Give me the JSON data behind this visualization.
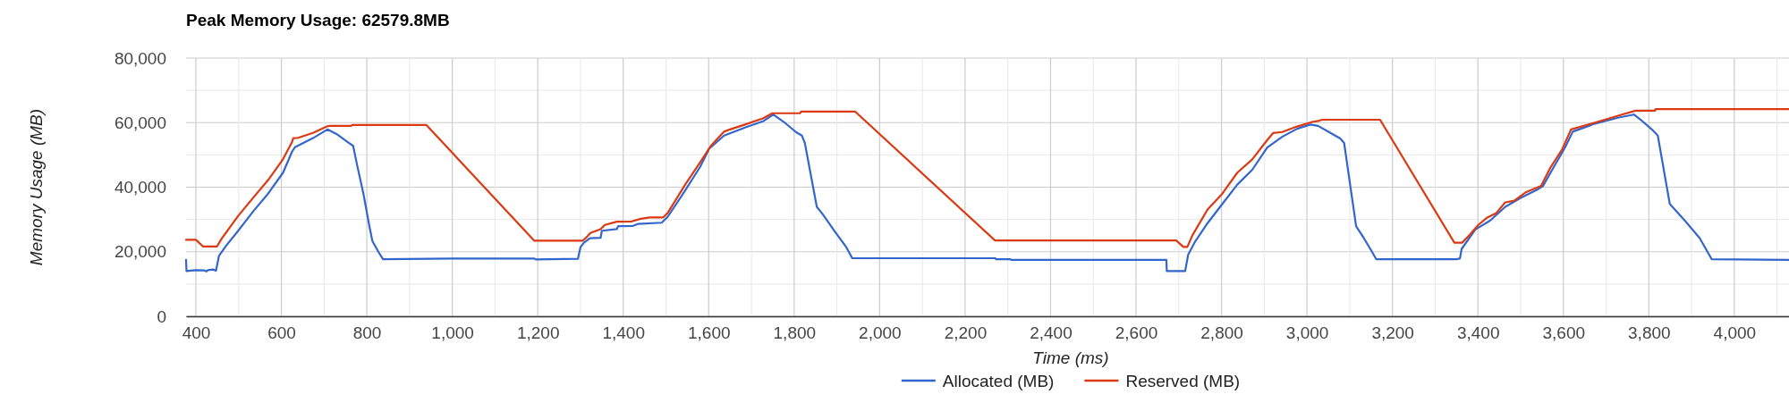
{
  "chart_data": {
    "type": "line",
    "title": "Peak Memory Usage: 62579.8MB",
    "xlabel": "Time (ms)",
    "ylabel": "Memory Usage (MB)",
    "xlim": [
      377,
      4128
    ],
    "xticks": [
      400,
      {
        "value": 500,
        "label": null
      },
      600,
      {
        "value": 700,
        "label": null
      },
      800,
      {
        "value": 900,
        "label": null
      },
      {
        "value": 1000,
        "label": "1,000"
      },
      {
        "value": 1100,
        "label": null
      },
      {
        "value": 1200,
        "label": "1,200"
      },
      {
        "value": 1300,
        "label": null
      },
      {
        "value": 1400,
        "label": "1,400"
      },
      {
        "value": 1500,
        "label": null
      },
      {
        "value": 1600,
        "label": "1,600"
      },
      {
        "value": 1700,
        "label": null
      },
      {
        "value": 1800,
        "label": "1,800"
      },
      {
        "value": 1900,
        "label": null
      },
      {
        "value": 2000,
        "label": "2,000"
      },
      {
        "value": 2100,
        "label": null
      },
      {
        "value": 2200,
        "label": "2,200"
      },
      {
        "value": 2300,
        "label": null
      },
      {
        "value": 2400,
        "label": "2,400"
      },
      {
        "value": 2500,
        "label": null
      },
      {
        "value": 2600,
        "label": "2,600"
      },
      {
        "value": 2700,
        "label": null
      },
      {
        "value": 2800,
        "label": "2,800"
      },
      {
        "value": 2900,
        "label": null
      },
      {
        "value": 3000,
        "label": "3,000"
      },
      {
        "value": 3100,
        "label": null
      },
      {
        "value": 3200,
        "label": "3,200"
      },
      {
        "value": 3300,
        "label": null
      },
      {
        "value": 3400,
        "label": "3,400"
      },
      {
        "value": 3500,
        "label": null
      },
      {
        "value": 3600,
        "label": "3,600"
      },
      {
        "value": 3700,
        "label": null
      },
      {
        "value": 3800,
        "label": "3,800"
      },
      {
        "value": 3900,
        "label": null
      },
      {
        "value": 4000,
        "label": "4,000"
      },
      {
        "value": 4100,
        "label": null
      }
    ],
    "ylim": [
      0,
      80000
    ],
    "yticks": [
      0,
      {
        "value": 10000,
        "label": null
      },
      {
        "value": 20000,
        "label": "20,000"
      },
      {
        "value": 30000,
        "label": null
      },
      {
        "value": 40000,
        "label": "40,000"
      },
      {
        "value": 50000,
        "label": null
      },
      {
        "value": 60000,
        "label": "60,000"
      },
      {
        "value": 70000,
        "label": null
      },
      {
        "value": 80000,
        "label": "80,000"
      }
    ],
    "grid": true,
    "legend": "bottom",
    "series": [
      {
        "name": "Allocated (MB)",
        "color": "#3366cc",
        "x": [
          377,
          378,
          400,
          420,
          425,
          428,
          440,
          447,
          454,
          471,
          499,
          534,
          569,
          604,
          625,
          632,
          674,
          708,
          729,
          757,
          768,
          778,
          792,
          806,
          813,
          827,
          838,
          1000,
          1192,
          1195,
          1294,
          1300,
          1308,
          1322,
          1347,
          1350,
          1385,
          1388,
          1423,
          1434,
          1490,
          1504,
          1545,
          1580,
          1601,
          1636,
          1685,
          1727,
          1751,
          1776,
          1804,
          1818,
          1825,
          1853,
          1867,
          1894,
          1922,
          1936,
          2271,
          2272,
          2306,
          2308,
          2671,
          2672,
          2715,
          2722,
          2739,
          2767,
          2802,
          2837,
          2872,
          2907,
          2942,
          2977,
          3008,
          3026,
          3054,
          3078,
          3087,
          3115,
          3129,
          3150,
          3162,
          3349,
          3358,
          3362,
          3394,
          3429,
          3464,
          3499,
          3541,
          3552,
          3576,
          3604,
          3622,
          3674,
          3730,
          3765,
          3779,
          3807,
          3821,
          3849,
          3884,
          3919,
          3947,
          4128
        ],
        "values": [
          17500,
          14000,
          14300,
          14200,
          13900,
          14300,
          14500,
          14100,
          18700,
          21900,
          26500,
          32500,
          38000,
          44500,
          51000,
          52400,
          55200,
          57900,
          56500,
          53800,
          52800,
          46400,
          38000,
          27900,
          23300,
          20000,
          17700,
          17900,
          17900,
          17600,
          17800,
          21400,
          22800,
          24200,
          24300,
          26500,
          27000,
          27900,
          28000,
          28600,
          29000,
          30800,
          39000,
          46300,
          51900,
          56000,
          58500,
          60400,
          62500,
          60200,
          57100,
          56000,
          53700,
          33900,
          31600,
          26500,
          21400,
          18000,
          18000,
          17700,
          17700,
          17500,
          17500,
          14000,
          14000,
          19100,
          23300,
          28800,
          34800,
          40800,
          45400,
          52300,
          55600,
          58100,
          59400,
          59000,
          56900,
          55100,
          53700,
          27900,
          25100,
          20500,
          17700,
          17700,
          17900,
          20900,
          26900,
          29700,
          33900,
          36600,
          39400,
          40300,
          45900,
          52300,
          57200,
          59700,
          61600,
          62500,
          61100,
          57900,
          56000,
          34800,
          29700,
          24200,
          17700,
          17500
        ]
      },
      {
        "name": "Reserved (MB)",
        "color": "#dc3912",
        "x": [
          377,
          400,
          417,
          449,
          461,
          499,
          534,
          569,
          604,
          625,
          628,
          639,
          674,
          708,
          715,
          764,
          766,
          939,
          1192,
          1305,
          1315,
          1323,
          1347,
          1357,
          1385,
          1420,
          1441,
          1462,
          1493,
          1504,
          1545,
          1580,
          1605,
          1636,
          1650,
          1685,
          1727,
          1749,
          1814,
          1816,
          1943,
          2270,
          2694,
          2711,
          2720,
          2732,
          2767,
          2802,
          2837,
          2872,
          2907,
          2921,
          2942,
          2977,
          3012,
          3029,
          3035,
          3171,
          3345,
          3363,
          3380,
          3401,
          3422,
          3443,
          3464,
          3485,
          3513,
          3548,
          3569,
          3597,
          3618,
          3674,
          3737,
          3769,
          3814,
          3816,
          4128
        ],
        "values": [
          23700,
          23700,
          21600,
          21600,
          24200,
          31100,
          36700,
          42200,
          48700,
          54000,
          55200,
          55300,
          56800,
          58900,
          59000,
          59000,
          59300,
          59300,
          23400,
          23400,
          24600,
          25800,
          27000,
          28300,
          29300,
          29400,
          30200,
          30600,
          30600,
          32000,
          40800,
          47700,
          52800,
          57200,
          57900,
          59400,
          61300,
          62900,
          62900,
          63400,
          63400,
          23500,
          23500,
          21500,
          21500,
          25100,
          33000,
          38000,
          44500,
          48600,
          54600,
          56800,
          57100,
          58800,
          60200,
          60600,
          60900,
          60900,
          22800,
          22800,
          25100,
          28300,
          30600,
          32000,
          35300,
          35800,
          38500,
          40400,
          45900,
          51700,
          57900,
          60000,
          62500,
          63700,
          63700,
          64200,
          64200
        ]
      }
    ]
  }
}
